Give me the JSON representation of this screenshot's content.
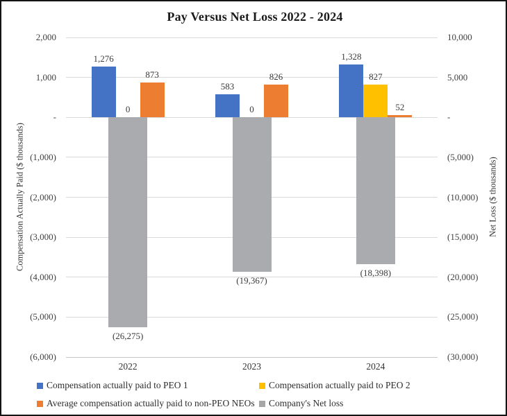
{
  "title": "Pay Versus Net Loss 2022 - 2024",
  "colors": {
    "peo1": "#4472C4",
    "peo2": "#FFC000",
    "non_peo": "#ED7D31",
    "net_loss": "#A9ABAE",
    "legend_gray": "#A6A6A6",
    "gridline": "#D9D9D9"
  },
  "axes": {
    "left": {
      "title": "Compensation Actually Paid ($ thousands)",
      "ticks": [
        "2,000",
        "1,000",
        "-",
        "(1,000)",
        "(2,000)",
        "(3,000)",
        "(4,000)",
        "(5,000)",
        "(6,000)"
      ]
    },
    "right": {
      "title": "Net Loss ($ thousands)",
      "ticks": [
        "10,000",
        "5,000",
        "-",
        "(5,000)",
        "(10,000)",
        "(15,000)",
        "(20,000)",
        "(25,000)",
        "(30,000)"
      ]
    }
  },
  "chart_data": {
    "type": "bar",
    "title": "Pay Versus Net Loss 2022 - 2024",
    "categories": [
      "2022",
      "2023",
      "2024"
    ],
    "series": [
      {
        "key": "peo1",
        "name": "Compensation actually paid to PEO 1",
        "axis": "primary",
        "color_key": "peo1",
        "values": [
          1276,
          583,
          1328
        ],
        "labels": [
          "1,276",
          "583",
          "1,328"
        ]
      },
      {
        "key": "peo2",
        "name": "Compensation actually paid to PEO 2",
        "axis": "primary",
        "color_key": "peo2",
        "values": [
          0,
          0,
          827
        ],
        "labels": [
          "0",
          "0",
          "827"
        ]
      },
      {
        "key": "non_peo",
        "name": "Average compensation actually paid to non-PEO NEOs",
        "axis": "primary",
        "color_key": "non_peo",
        "values": [
          873,
          826,
          52
        ],
        "labels": [
          "873",
          "826",
          "52"
        ]
      },
      {
        "key": "net_loss",
        "name": "Company's Net loss",
        "axis": "secondary",
        "color_key": "net_loss",
        "values": [
          -26275,
          -19367,
          -18398
        ],
        "labels": [
          "(26,275)",
          "(19,367)",
          "(18,398)"
        ]
      }
    ],
    "primary_ylim": [
      -6000,
      2000
    ],
    "secondary_ylim": [
      -30000,
      10000
    ],
    "xlabel": "",
    "ylabel_left": "Compensation Actually Paid ($ thousands)",
    "ylabel_right": "Net Loss ($ thousands)",
    "grid": true,
    "legend_position": "bottom"
  },
  "legend": {
    "items": [
      {
        "label": "Compensation actually paid to PEO 1",
        "color_key": "peo1"
      },
      {
        "label": "Compensation actually paid to PEO 2",
        "color_key": "peo2"
      },
      {
        "label": "Average compensation actually paid to non-PEO NEOs",
        "color_key": "non_peo"
      },
      {
        "label": "Company's Net loss",
        "color_key": "legend_gray"
      }
    ]
  }
}
